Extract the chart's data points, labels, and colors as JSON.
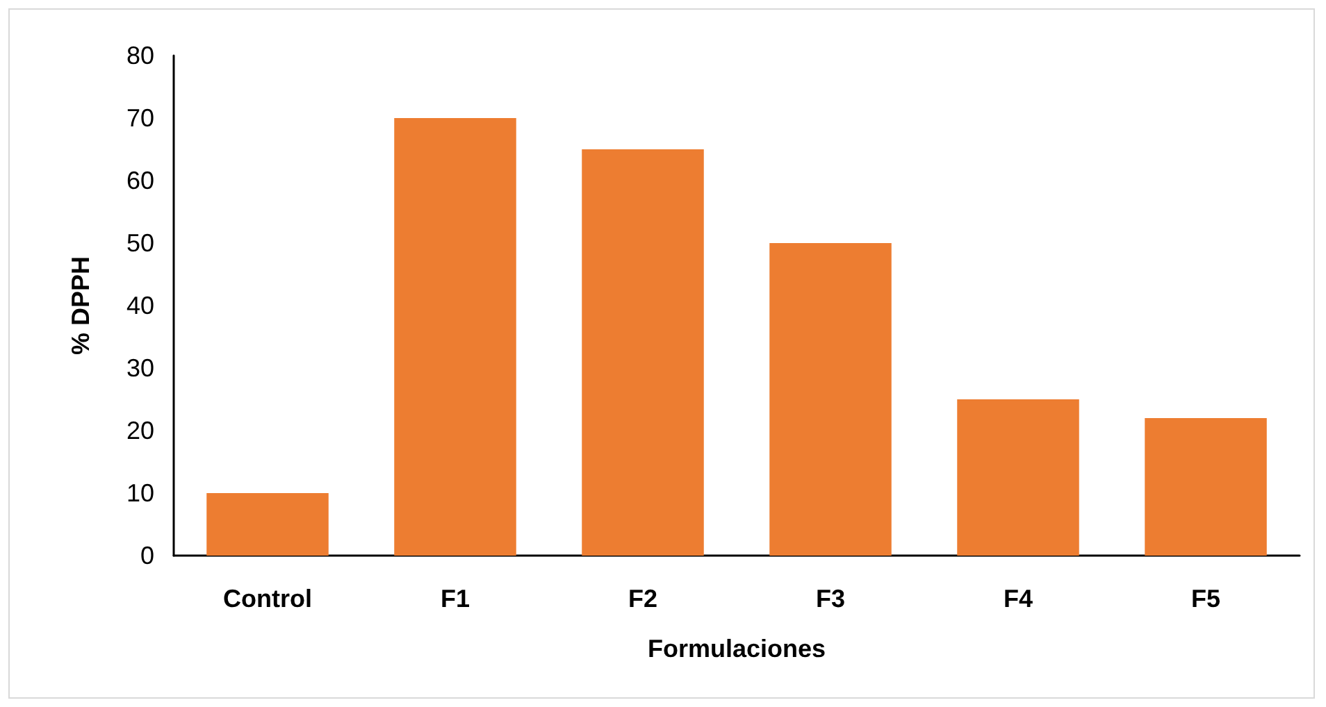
{
  "chart_data": {
    "type": "bar",
    "xlabel": "Formulaciones",
    "ylabel": "% DPPH",
    "categories": [
      "Control",
      "F1",
      "F2",
      "F3",
      "F4",
      "F5"
    ],
    "values": [
      10,
      70,
      65,
      50,
      25,
      22
    ],
    "color": "#ed7d31",
    "ylim": [
      0,
      80
    ],
    "yticks": [
      0,
      10,
      20,
      30,
      40,
      50,
      60,
      70,
      80
    ],
    "grid": false
  }
}
